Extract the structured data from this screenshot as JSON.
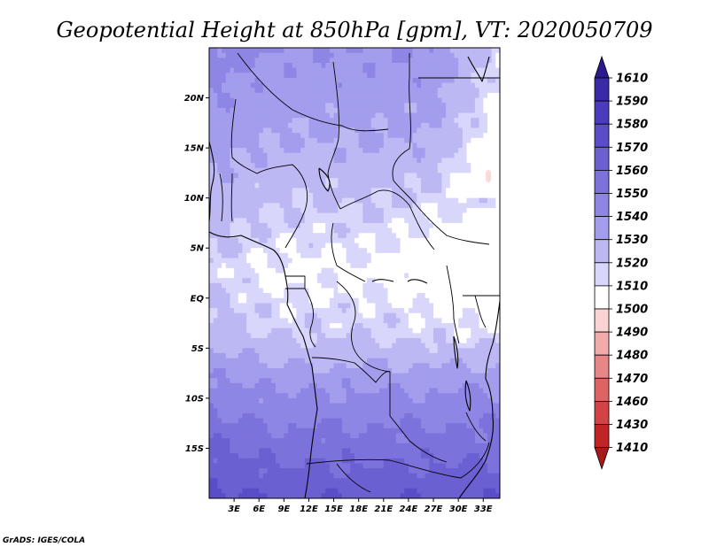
{
  "chart_data": {
    "type": "heatmap",
    "title": "Geopotential Height at 850hPa [gpm], VT: 2020050709",
    "variable": "Geopotential Height",
    "level": "850hPa",
    "units": "gpm",
    "valid_time": "2020050709",
    "credit": "GrADS: IGES/COLA",
    "lon_range": [
      0,
      35
    ],
    "lat_range": [
      -20,
      25
    ],
    "x_ticks": [
      "3E",
      "6E",
      "9E",
      "12E",
      "15E",
      "18E",
      "21E",
      "24E",
      "27E",
      "30E",
      "33E"
    ],
    "x_tick_values": [
      3,
      6,
      9,
      12,
      15,
      18,
      21,
      24,
      27,
      30,
      33
    ],
    "y_ticks": [
      "20N",
      "15N",
      "10N",
      "5N",
      "EQ",
      "5S",
      "10S",
      "15S"
    ],
    "y_tick_values": [
      20,
      15,
      10,
      5,
      0,
      -5,
      -10,
      -15
    ],
    "colorbar": {
      "labels": [
        "1610",
        "1590",
        "1580",
        "1570",
        "1560",
        "1550",
        "1540",
        "1530",
        "1520",
        "1510",
        "1500",
        "1490",
        "1480",
        "1470",
        "1460",
        "1430",
        "1410"
      ],
      "colors": [
        "#2a1a8e",
        "#3a2aa8",
        "#4a3cbc",
        "#5a4ec8",
        "#6a60d2",
        "#7c72dc",
        "#8e86e4",
        "#a39ded",
        "#bcb8f4",
        "#d8d6fa",
        "#ffffff",
        "#fad4d4",
        "#f2aaaa",
        "#e88686",
        "#de6464",
        "#d24444",
        "#c02424",
        "#a81a1a"
      ]
    },
    "field_bands": [
      {
        "value": 1520,
        "color": "#ffffff"
      },
      {
        "value": 1525,
        "color": "#d8d6fa"
      },
      {
        "value": 1530,
        "color": "#bcb8f4"
      },
      {
        "value": 1540,
        "color": "#a39ded"
      },
      {
        "value": 1550,
        "color": "#8e86e4"
      },
      {
        "value": 1560,
        "color": "#7c72dc"
      },
      {
        "value": 1570,
        "color": "#6a60d2"
      },
      {
        "value": 1580,
        "color": "#5a4ec8"
      },
      {
        "value": 1590,
        "color": "#4a3cbc"
      }
    ]
  }
}
